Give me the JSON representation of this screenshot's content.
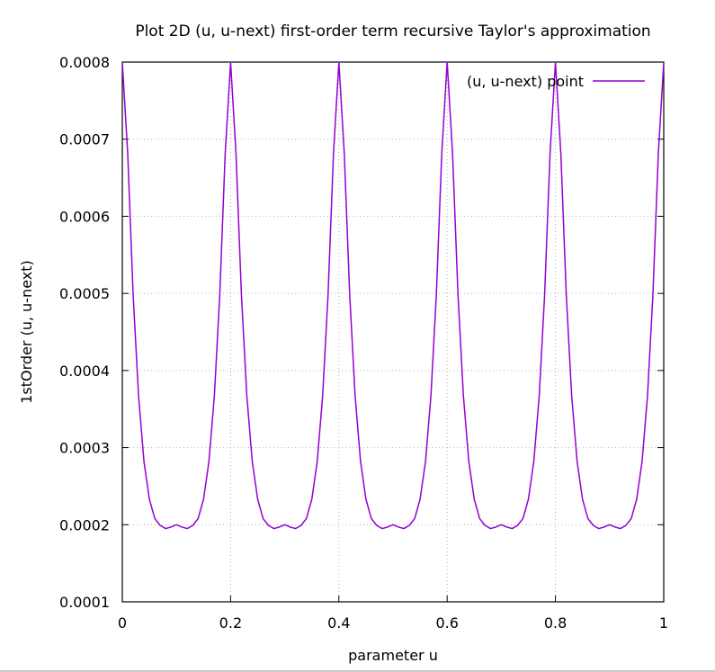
{
  "chart_data": {
    "type": "line",
    "title": "Plot 2D (u, u-next) first-order term recursive Taylor's approximation",
    "xlabel": "parameter u",
    "ylabel": "1stOrder (u, u-next)",
    "xlim": [
      0,
      1
    ],
    "ylim": [
      0.0001,
      0.0008
    ],
    "x_ticks": [
      "0",
      "0.2",
      "0.4",
      "0.6",
      "0.8",
      "1"
    ],
    "x_tick_values": [
      0,
      0.2,
      0.4,
      0.6,
      0.8,
      1
    ],
    "y_ticks": [
      "0.0001",
      "0.0002",
      "0.0003",
      "0.0004",
      "0.0005",
      "0.0006",
      "0.0007",
      "0.0008"
    ],
    "y_tick_values": [
      0.0001,
      0.0002,
      0.0003,
      0.0004,
      0.0005,
      0.0006,
      0.0007,
      0.0008
    ],
    "grid": true,
    "legend_position": "top-right",
    "series": [
      {
        "name": "(u, u-next) point",
        "color": "#9400d3",
        "x": [
          0,
          0.01,
          0.02,
          0.03,
          0.04,
          0.05,
          0.06,
          0.07,
          0.08,
          0.09,
          0.1,
          0.11,
          0.12,
          0.13,
          0.14,
          0.15,
          0.16,
          0.17,
          0.18,
          0.19,
          0.2,
          0.21,
          0.22,
          0.23,
          0.24,
          0.25,
          0.26,
          0.27,
          0.28,
          0.29,
          0.3,
          0.31,
          0.32,
          0.33,
          0.34,
          0.35,
          0.36,
          0.37,
          0.38,
          0.39,
          0.4,
          0.41,
          0.42,
          0.43,
          0.44,
          0.45,
          0.46,
          0.47,
          0.48,
          0.49,
          0.5,
          0.51,
          0.52,
          0.53,
          0.54,
          0.55,
          0.56,
          0.57,
          0.58,
          0.59,
          0.6,
          0.61,
          0.62,
          0.63,
          0.64,
          0.65,
          0.66,
          0.67,
          0.68,
          0.69,
          0.7,
          0.71,
          0.72,
          0.73,
          0.74,
          0.75,
          0.76,
          0.77,
          0.78,
          0.79,
          0.8,
          0.81,
          0.82,
          0.83,
          0.84,
          0.85,
          0.86,
          0.87,
          0.88,
          0.89,
          0.9,
          0.91,
          0.92,
          0.93,
          0.94,
          0.95,
          0.96,
          0.97,
          0.98,
          0.99,
          1
        ],
        "y": [
          0.0008,
          0.000681,
          0.000498,
          0.000367,
          0.000282,
          0.000233,
          0.000208,
          0.000199,
          0.000195,
          0.000197,
          0.0002,
          0.000197,
          0.000195,
          0.000199,
          0.000208,
          0.000233,
          0.000282,
          0.000367,
          0.000498,
          0.000681,
          0.0008,
          0.000681,
          0.000498,
          0.000367,
          0.000282,
          0.000233,
          0.000208,
          0.000199,
          0.000195,
          0.000197,
          0.0002,
          0.000197,
          0.000195,
          0.000199,
          0.000208,
          0.000233,
          0.000282,
          0.000367,
          0.000498,
          0.000681,
          0.0008,
          0.000681,
          0.000498,
          0.000367,
          0.000282,
          0.000233,
          0.000208,
          0.000199,
          0.000195,
          0.000197,
          0.0002,
          0.000197,
          0.000195,
          0.000199,
          0.000208,
          0.000233,
          0.000282,
          0.000367,
          0.000498,
          0.000681,
          0.0008,
          0.000681,
          0.000498,
          0.000367,
          0.000282,
          0.000233,
          0.000208,
          0.000199,
          0.000195,
          0.000197,
          0.0002,
          0.000197,
          0.000195,
          0.000199,
          0.000208,
          0.000233,
          0.000282,
          0.000367,
          0.000498,
          0.000681,
          0.0008,
          0.000681,
          0.000498,
          0.000367,
          0.000282,
          0.000233,
          0.000208,
          0.000199,
          0.000195,
          0.000197,
          0.0002,
          0.000197,
          0.000195,
          0.000199,
          0.000208,
          0.000233,
          0.000282,
          0.000367,
          0.000498,
          0.000681,
          0.0008
        ]
      }
    ]
  }
}
